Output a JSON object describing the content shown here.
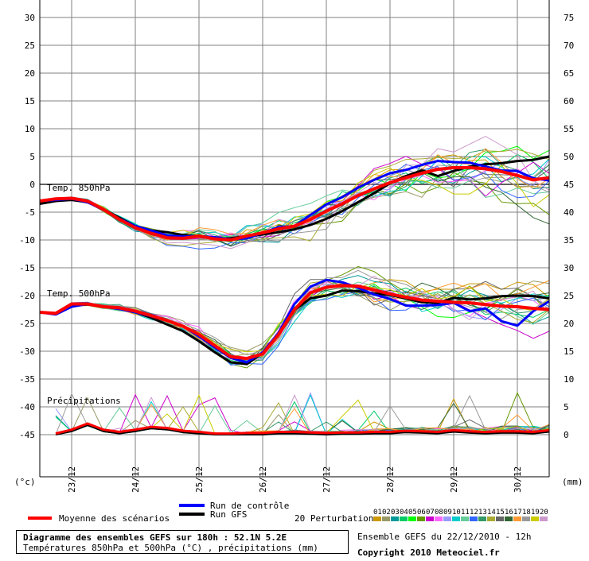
{
  "chart_data": {
    "type": "line",
    "left_axis_unit": "(°c)",
    "right_axis_unit": "(mm)",
    "left_ticks": [
      30,
      25,
      20,
      15,
      10,
      5,
      0,
      -5,
      -10,
      -15,
      -20,
      -25,
      -30,
      -35,
      -40,
      -45
    ],
    "right_ticks": [
      75,
      70,
      65,
      60,
      55,
      50,
      45,
      40,
      35,
      30,
      25,
      20,
      15,
      10,
      5,
      0
    ],
    "x_ticks": [
      "23/12",
      "24/12",
      "25/12",
      "26/12",
      "27/12",
      "28/12",
      "29/12",
      "30/12"
    ],
    "x_start_day": 22.5,
    "x_end_day": 30.5,
    "panels": {
      "t850_label": "Temp. 850hPa",
      "t500_label": "Temp. 500hPa",
      "precip_label": "Précipitations"
    },
    "t850": {
      "x": [
        22.5,
        22.75,
        23,
        23.25,
        23.5,
        23.75,
        24,
        24.25,
        24.5,
        24.75,
        25,
        25.25,
        25.5,
        25.75,
        26,
        26.25,
        26.5,
        26.75,
        27,
        27.25,
        27.5,
        27.75,
        28,
        28.25,
        28.5,
        28.75,
        29,
        29.25,
        29.5,
        29.75,
        30,
        30.25,
        30.5
      ],
      "mean": [
        -3,
        -2.6,
        -2.5,
        -3,
        -4.5,
        -6.3,
        -7.8,
        -8.8,
        -9.6,
        -9.7,
        -9.3,
        -9.8,
        -10,
        -9.3,
        -8.7,
        -8,
        -7.5,
        -6.3,
        -4.8,
        -3.5,
        -2,
        -0.8,
        0.3,
        1.2,
        2,
        2.7,
        3,
        3,
        2.8,
        2.3,
        1.6,
        0.8,
        1.2
      ],
      "gfs": [
        -3.5,
        -3,
        -2.8,
        -3.2,
        -4.5,
        -6,
        -7.5,
        -8.3,
        -8.6,
        -9.1,
        -9.4,
        -9.8,
        -9.7,
        -9.3,
        -9,
        -8.6,
        -8.1,
        -7.3,
        -6.2,
        -4.8,
        -3.2,
        -1.6,
        0.2,
        1.5,
        2.5,
        1.5,
        2.4,
        3.2,
        3.6,
        3.8,
        4.2,
        4.4,
        5
      ],
      "control": [
        -3,
        -2.8,
        -2.6,
        -3.2,
        -4.6,
        -6.2,
        -7.5,
        -8.3,
        -9.2,
        -9.4,
        -9.3,
        -9.5,
        -9.9,
        -9.7,
        -8.7,
        -7.7,
        -7.5,
        -5.5,
        -3.6,
        -2.3,
        -0.6,
        0.8,
        2,
        2.6,
        3.5,
        4.2,
        4,
        3.9,
        3.2,
        2.5,
        2.4,
        1.1,
        0.7
      ]
    },
    "t500": {
      "x": [
        22.5,
        22.75,
        23,
        23.25,
        23.5,
        23.75,
        24,
        24.25,
        24.5,
        24.75,
        25,
        25.25,
        25.5,
        25.75,
        26,
        26.25,
        26.5,
        26.75,
        27,
        27.25,
        27.5,
        27.75,
        28,
        28.25,
        28.5,
        28.75,
        29,
        29.25,
        29.5,
        29.75,
        30,
        30.25,
        30.5
      ],
      "mean": [
        -23,
        -23.2,
        -21.5,
        -21.5,
        -22,
        -22.2,
        -22.8,
        -23.6,
        -24.5,
        -25.5,
        -27,
        -29,
        -31,
        -31.3,
        -30.5,
        -27,
        -22.5,
        -19.5,
        -18.5,
        -18.2,
        -18.3,
        -19,
        -19.7,
        -20.3,
        -20.8,
        -21,
        -21.2,
        -21.3,
        -21.6,
        -21.9,
        -22,
        -22.3,
        -22.5
      ],
      "gfs": [
        -23,
        -23.2,
        -21.8,
        -21.6,
        -22,
        -22.3,
        -23,
        -24,
        -25.2,
        -26.4,
        -28.2,
        -30.2,
        -32,
        -32.3,
        -30.3,
        -27,
        -22.6,
        -20.5,
        -20,
        -19.1,
        -19.2,
        -19.6,
        -19.9,
        -20.5,
        -21.2,
        -21.3,
        -20.4,
        -20.7,
        -20.5,
        -20.1,
        -20,
        -20.1,
        -20.5
      ],
      "control": [
        -23,
        -23.4,
        -22,
        -21.5,
        -22,
        -22.4,
        -23,
        -23.7,
        -24.5,
        -25.5,
        -27.3,
        -29.3,
        -31.2,
        -32,
        -30.2,
        -26.7,
        -21.5,
        -18.4,
        -17.2,
        -17.6,
        -18.6,
        -19.8,
        -20.6,
        -21.8,
        -21.8,
        -21.7,
        -21.3,
        -22.8,
        -22.3,
        -24.6,
        -25.4,
        -22.8,
        -21
      ]
    },
    "precip": {
      "x": [
        22.75,
        23,
        23.25,
        23.5,
        23.75,
        24,
        24.25,
        24.5,
        24.75,
        25,
        25.25,
        25.5,
        25.75,
        26,
        26.25,
        26.5,
        26.75,
        27,
        27.25,
        27.5,
        27.75,
        28,
        28.25,
        28.5,
        28.75,
        29,
        29.25,
        29.5,
        29.75,
        30,
        30.25,
        30.5
      ],
      "mean_mm": [
        0.2,
        0.9,
        2,
        0.9,
        0.5,
        0.9,
        1.4,
        1.2,
        0.7,
        0.5,
        0.2,
        0.2,
        0.3,
        0.3,
        0.5,
        0.5,
        0.4,
        0.3,
        0.4,
        0.4,
        0.5,
        0.5,
        0.7,
        0.6,
        0.5,
        0.8,
        0.6,
        0.5,
        0.6,
        0.6,
        0.5,
        0.8
      ]
    }
  },
  "legend": {
    "mean_label": "Moyenne des scénarios",
    "control_label": "Run de contrôle",
    "gfs_label": "Run GFS",
    "perturbations_label": "20 Perturbations",
    "perturbation_ids": [
      "01",
      "02",
      "03",
      "04",
      "05",
      "06",
      "07",
      "08",
      "09",
      "10",
      "11",
      "12",
      "13",
      "14",
      "15",
      "16",
      "17",
      "18",
      "19",
      "20"
    ]
  },
  "colors": {
    "mean": "#ff0000",
    "control": "#0000ff",
    "gfs": "#000000",
    "grid": "#808080",
    "perturbations": [
      "#cc9900",
      "#999966",
      "#009999",
      "#00cc66",
      "#00ff00",
      "#669900",
      "#cc00cc",
      "#ff66ff",
      "#9999ff",
      "#00cccc",
      "#66cc99",
      "#3366ff",
      "#339966",
      "#aaaa33",
      "#666666",
      "#336633",
      "#ff9933",
      "#999999",
      "#cccc00",
      "#cc99cc"
    ]
  },
  "footer": {
    "title": "Diagramme des ensembles GEFS sur 180h : 52.1N 5.2E",
    "subtitle": "Températures 850hPa et 500hPa (°C) , précipitations (mm)",
    "ensemble": "Ensemble GEFS du 22/12/2010 - 12h",
    "copyright": "Copyright 2010 Meteociel.fr"
  }
}
